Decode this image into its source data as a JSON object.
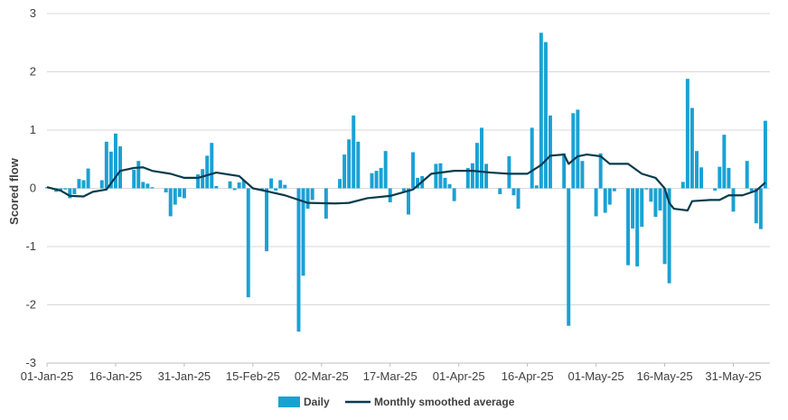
{
  "chart_data": {
    "type": "bar",
    "title": "",
    "xlabel": "",
    "ylabel": "Scored flow",
    "ylim": [
      -3,
      3
    ],
    "yticks": [
      "-3",
      "-2",
      "-1",
      "0",
      "1",
      "2",
      "3"
    ],
    "xlim_days": [
      0,
      158
    ],
    "xtick_labels": [
      "01-Jan-25",
      "16-Jan-25",
      "31-Jan-25",
      "15-Feb-25",
      "02-Mar-25",
      "17-Mar-25",
      "01-Apr-25",
      "16-Apr-25",
      "01-May-25",
      "16-May-25",
      "31-May-25"
    ],
    "grid": "horizontal",
    "legend": "bottom",
    "colors": {
      "bar": "#1AA1D4",
      "line": "#073B4C",
      "grid": "#D9D9D9",
      "axis": "#BFBFBF"
    },
    "series": [
      {
        "name": "Daily",
        "type": "bar",
        "points": [
          [
            "01-Jan-25",
            0.02
          ],
          [
            "02-Jan-25",
            0.0
          ],
          [
            "03-Jan-25",
            -0.06
          ],
          [
            "04-Jan-25",
            -0.03
          ],
          [
            "05-Jan-25",
            -0.02
          ],
          [
            "06-Jan-25",
            -0.17
          ],
          [
            "07-Jan-25",
            -0.1
          ],
          [
            "08-Jan-25",
            0.16
          ],
          [
            "09-Jan-25",
            0.14
          ],
          [
            "10-Jan-25",
            0.34
          ],
          [
            "13-Jan-25",
            0.14
          ],
          [
            "14-Jan-25",
            0.8
          ],
          [
            "15-Jan-25",
            0.63
          ],
          [
            "16-Jan-25",
            0.94
          ],
          [
            "17-Jan-25",
            0.72
          ],
          [
            "20-Jan-25",
            0.32
          ],
          [
            "21-Jan-25",
            0.47
          ],
          [
            "22-Jan-25",
            0.11
          ],
          [
            "23-Jan-25",
            0.08
          ],
          [
            "24-Jan-25",
            0.02
          ],
          [
            "27-Jan-25",
            -0.07
          ],
          [
            "28-Jan-25",
            -0.48
          ],
          [
            "29-Jan-25",
            -0.28
          ],
          [
            "30-Jan-25",
            -0.15
          ],
          [
            "31-Jan-25",
            -0.17
          ],
          [
            "03-Feb-25",
            0.24
          ],
          [
            "04-Feb-25",
            0.33
          ],
          [
            "05-Feb-25",
            0.56
          ],
          [
            "06-Feb-25",
            0.78
          ],
          [
            "07-Feb-25",
            0.04
          ],
          [
            "10-Feb-25",
            0.12
          ],
          [
            "11-Feb-25",
            -0.03
          ],
          [
            "12-Feb-25",
            0.1
          ],
          [
            "13-Feb-25",
            0.14
          ],
          [
            "14-Feb-25",
            -1.87
          ],
          [
            "17-Feb-25",
            -0.04
          ],
          [
            "18-Feb-25",
            -1.08
          ],
          [
            "19-Feb-25",
            0.17
          ],
          [
            "20-Feb-25",
            -0.04
          ],
          [
            "21-Feb-25",
            0.14
          ],
          [
            "22-Feb-25",
            0.06
          ],
          [
            "25-Feb-25",
            -2.46
          ],
          [
            "26-Feb-25",
            -1.5
          ],
          [
            "27-Feb-25",
            -0.35
          ],
          [
            "28-Feb-25",
            -0.2
          ],
          [
            "03-Mar-25",
            -0.52
          ],
          [
            "06-Mar-25",
            0.16
          ],
          [
            "07-Mar-25",
            0.58
          ],
          [
            "08-Mar-25",
            0.84
          ],
          [
            "09-Mar-25",
            1.25
          ],
          [
            "10-Mar-25",
            0.8
          ],
          [
            "13-Mar-25",
            0.26
          ],
          [
            "14-Mar-25",
            0.3
          ],
          [
            "15-Mar-25",
            0.35
          ],
          [
            "16-Mar-25",
            0.64
          ],
          [
            "17-Mar-25",
            -0.24
          ],
          [
            "20-Mar-25",
            -0.05
          ],
          [
            "21-Mar-25",
            -0.45
          ],
          [
            "22-Mar-25",
            0.62
          ],
          [
            "23-Mar-25",
            0.18
          ],
          [
            "24-Mar-25",
            0.21
          ],
          [
            "27-Mar-25",
            0.42
          ],
          [
            "28-Mar-25",
            0.43
          ],
          [
            "29-Mar-25",
            0.18
          ],
          [
            "30-Mar-25",
            0.07
          ],
          [
            "31-Mar-25",
            -0.22
          ],
          [
            "03-Apr-25",
            0.35
          ],
          [
            "04-Apr-25",
            0.43
          ],
          [
            "05-Apr-25",
            0.78
          ],
          [
            "06-Apr-25",
            1.04
          ],
          [
            "07-Apr-25",
            0.42
          ],
          [
            "10-Apr-25",
            -0.1
          ],
          [
            "11-Apr-25",
            0.0
          ],
          [
            "12-Apr-25",
            0.55
          ],
          [
            "13-Apr-25",
            -0.12
          ],
          [
            "14-Apr-25",
            -0.35
          ],
          [
            "17-Apr-25",
            1.04
          ],
          [
            "18-Apr-25",
            0.05
          ],
          [
            "19-Apr-25",
            2.67
          ],
          [
            "20-Apr-25",
            2.51
          ],
          [
            "21-Apr-25",
            1.25
          ],
          [
            "24-Apr-25",
            0.6
          ],
          [
            "25-Apr-25",
            -2.36
          ],
          [
            "26-Apr-25",
            1.29
          ],
          [
            "27-Apr-25",
            1.35
          ],
          [
            "28-Apr-25",
            0.47
          ],
          [
            "01-May-25",
            -0.48
          ],
          [
            "02-May-25",
            0.6
          ],
          [
            "03-May-25",
            -0.42
          ],
          [
            "04-May-25",
            -0.28
          ],
          [
            "05-May-25",
            -0.05
          ],
          [
            "08-May-25",
            -1.32
          ],
          [
            "09-May-25",
            -0.69
          ],
          [
            "10-May-25",
            -1.34
          ],
          [
            "11-May-25",
            -0.66
          ],
          [
            "12-May-25",
            -0.02
          ],
          [
            "13-May-25",
            -0.23
          ],
          [
            "14-May-25",
            -0.49
          ],
          [
            "15-May-25",
            -0.38
          ],
          [
            "16-May-25",
            -1.3
          ],
          [
            "17-May-25",
            -1.63
          ],
          [
            "20-May-25",
            0.11
          ],
          [
            "21-May-25",
            1.88
          ],
          [
            "22-May-25",
            1.38
          ],
          [
            "23-May-25",
            0.64
          ],
          [
            "24-May-25",
            0.36
          ],
          [
            "27-May-25",
            -0.04
          ],
          [
            "28-May-25",
            0.37
          ],
          [
            "29-May-25",
            0.92
          ],
          [
            "30-May-25",
            0.35
          ],
          [
            "31-May-25",
            -0.4
          ],
          [
            "03-Jun-25",
            0.47
          ],
          [
            "04-Jun-25",
            -0.05
          ],
          [
            "05-Jun-25",
            -0.6
          ],
          [
            "06-Jun-25",
            -0.7
          ],
          [
            "07-Jun-25",
            1.16
          ]
        ]
      },
      {
        "name": "Monthly smoothed average",
        "type": "line",
        "points": [
          [
            "01-Jan-25",
            0.02
          ],
          [
            "04-Jan-25",
            -0.04
          ],
          [
            "06-Jan-25",
            -0.13
          ],
          [
            "09-Jan-25",
            -0.14
          ],
          [
            "11-Jan-25",
            -0.06
          ],
          [
            "14-Jan-25",
            -0.02
          ],
          [
            "17-Jan-25",
            0.3
          ],
          [
            "20-Jan-25",
            0.35
          ],
          [
            "22-Jan-25",
            0.36
          ],
          [
            "24-Jan-25",
            0.3
          ],
          [
            "28-Jan-25",
            0.25
          ],
          [
            "31-Jan-25",
            0.18
          ],
          [
            "03-Feb-25",
            0.18
          ],
          [
            "07-Feb-25",
            0.27
          ],
          [
            "12-Feb-25",
            0.21
          ],
          [
            "15-Feb-25",
            0.0
          ],
          [
            "18-Feb-25",
            -0.05
          ],
          [
            "22-Feb-25",
            -0.12
          ],
          [
            "27-Feb-25",
            -0.25
          ],
          [
            "05-Mar-25",
            -0.26
          ],
          [
            "08-Mar-25",
            -0.25
          ],
          [
            "12-Mar-25",
            -0.17
          ],
          [
            "17-Mar-25",
            -0.13
          ],
          [
            "22-Mar-25",
            -0.02
          ],
          [
            "26-Mar-25",
            0.25
          ],
          [
            "31-Mar-25",
            0.3
          ],
          [
            "04-Apr-25",
            0.3
          ],
          [
            "08-Apr-25",
            0.27
          ],
          [
            "12-Apr-25",
            0.25
          ],
          [
            "16-Apr-25",
            0.25
          ],
          [
            "19-Apr-25",
            0.4
          ],
          [
            "21-Apr-25",
            0.56
          ],
          [
            "24-Apr-25",
            0.58
          ],
          [
            "25-Apr-25",
            0.42
          ],
          [
            "27-Apr-25",
            0.55
          ],
          [
            "29-Apr-25",
            0.58
          ],
          [
            "02-May-25",
            0.55
          ],
          [
            "04-May-25",
            0.42
          ],
          [
            "08-May-25",
            0.42
          ],
          [
            "11-May-25",
            0.25
          ],
          [
            "14-May-25",
            0.18
          ],
          [
            "16-May-25",
            0.0
          ],
          [
            "17-May-25",
            -0.25
          ],
          [
            "18-May-25",
            -0.35
          ],
          [
            "21-May-25",
            -0.38
          ],
          [
            "22-May-25",
            -0.22
          ],
          [
            "26-May-25",
            -0.2
          ],
          [
            "28-May-25",
            -0.2
          ],
          [
            "30-May-25",
            -0.12
          ],
          [
            "02-Jun-25",
            -0.12
          ],
          [
            "05-Jun-25",
            -0.04
          ],
          [
            "07-Jun-25",
            0.1
          ]
        ]
      }
    ]
  }
}
